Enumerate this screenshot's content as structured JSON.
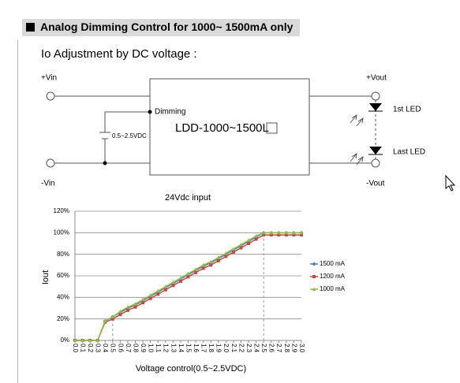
{
  "header": {
    "title": "Analog Dimming Control for 1000~ 1500mA only",
    "subtitle": "Io Adjustment by DC voltage :"
  },
  "diagram": {
    "vin_plus": "+Vin",
    "vin_minus": "-Vin",
    "vout_plus": "+Vout",
    "vout_minus": "-Vout",
    "dimming": "Dimming",
    "source": "0.5~2.5VDC",
    "model": "LDD-1000~1500L",
    "first_led": "1st LED",
    "last_led": "Last LED"
  },
  "chart_data": {
    "type": "line",
    "title": "24Vdc input",
    "y_label": "Iout",
    "x_label": "Voltage control(0.5~2.5VDC)",
    "categories": [
      "0.0",
      "0.1",
      "0.2",
      "0.3",
      "0.4",
      "0.5",
      "0.6",
      "0.7",
      "0.8",
      "0.9",
      "1.0",
      "1.1",
      "1.2",
      "1.3",
      "1.4",
      "1.5",
      "1.6",
      "1.7",
      "1.8",
      "1.9",
      "2.0",
      "2.1",
      "2.2",
      "2.3",
      "2.4",
      "2.5",
      "2.6",
      "2.7",
      "2.8",
      "2.9",
      "3.0"
    ],
    "series": [
      {
        "name": "1500 mA",
        "color": "#4a7ebb",
        "marker": "diamond",
        "values": [
          0,
          0,
          0,
          0,
          18,
          22,
          26,
          30,
          33,
          37,
          41,
          45,
          49,
          53,
          57,
          61,
          65,
          69,
          72,
          76,
          80,
          84,
          88,
          92,
          96,
          100,
          100,
          100,
          100,
          100,
          100
        ]
      },
      {
        "name": "1200 mA",
        "color": "#be4b48",
        "marker": "square",
        "values": [
          0,
          0,
          0,
          0,
          17,
          20,
          24,
          28,
          31,
          35,
          39,
          43,
          47,
          51,
          55,
          59,
          63,
          67,
          70,
          74,
          78,
          82,
          86,
          90,
          94,
          98,
          98,
          98,
          98,
          98,
          98
        ]
      },
      {
        "name": "1000 mA",
        "color": "#98b954",
        "marker": "triangle",
        "values": [
          0,
          0,
          0,
          0,
          18,
          22,
          27,
          31,
          34,
          38,
          42,
          46,
          50,
          54,
          58,
          62,
          66,
          70,
          73,
          77,
          81,
          85,
          89,
          93,
          97,
          100,
          100,
          100,
          100,
          100,
          100
        ]
      }
    ],
    "ylim": [
      0,
      120
    ],
    "yticks": [
      {
        "value": 0,
        "label": "0%"
      },
      {
        "value": 20,
        "label": "20%"
      },
      {
        "value": 40,
        "label": "40%"
      },
      {
        "value": 60,
        "label": "60%"
      },
      {
        "value": 80,
        "label": "80%"
      },
      {
        "value": 100,
        "label": "100%"
      },
      {
        "value": 120,
        "label": "120%"
      }
    ],
    "grid": true,
    "legend": "right",
    "guides": [
      "0.5",
      "2.5"
    ]
  }
}
